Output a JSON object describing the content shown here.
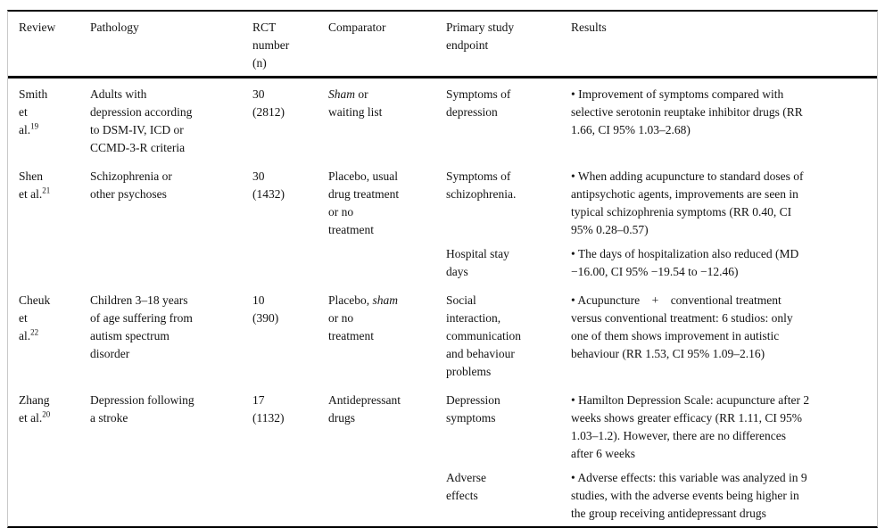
{
  "colors": {
    "background": "#ffffff",
    "text": "#131313",
    "rule": "#000000",
    "side_frame": "#c9c9c9"
  },
  "table": {
    "header": {
      "review": "Review",
      "pathology": "Pathology",
      "rct": "RCT\nnumber\n(n)",
      "comparator": "Comparator",
      "endpoint": "Primary study\nendpoint",
      "results": "Results"
    },
    "rows": [
      {
        "review_lines": [
          "Smith",
          "et",
          "al."
        ],
        "ref": "19",
        "pathology": "Adults with\ndepression according\nto DSM-IV, ICD or\nCCMD-3-R criteria",
        "rct": "30\n(2812)",
        "comparator": [
          {
            "text": "Sham",
            "italic": true
          },
          {
            "text": " or\nwaiting list",
            "italic": false
          }
        ],
        "entries": [
          {
            "endpoint": "Symptoms of\ndepression",
            "result": "• Improvement of symptoms compared with\nselective serotonin reuptake inhibitor drugs (RR\n1.66, CI 95% 1.03–2.68)"
          }
        ]
      },
      {
        "review_lines": [
          "Shen",
          "et al."
        ],
        "ref": "21",
        "pathology": "Schizophrenia or\nother psychoses",
        "rct": "30\n(1432)",
        "comparator": [
          {
            "text": "Placebo, usual\ndrug treatment\nor no\ntreatment",
            "italic": false
          }
        ],
        "entries": [
          {
            "endpoint": "Symptoms of\nschizophrenia.",
            "result": "• When adding acupuncture to standard doses of\nantipsychotic agents, improvements are seen in\ntypical schizophrenia symptoms (RR 0.40, CI\n95% 0.28–0.57)"
          },
          {
            "endpoint": "Hospital stay\ndays",
            "result": "• The days of hospitalization also reduced (MD\n−16.00, CI 95% −19.54 to −12.46)"
          }
        ]
      },
      {
        "review_lines": [
          "Cheuk",
          "et",
          "al."
        ],
        "ref": "22",
        "pathology": "Children 3–18 years\nof age suffering from\nautism spectrum\ndisorder",
        "rct": "10\n(390)",
        "comparator": [
          {
            "text": "Placebo, ",
            "italic": false
          },
          {
            "text": "sham",
            "italic": true
          },
          {
            "text": "\nor no\ntreatment",
            "italic": false
          }
        ],
        "entries": [
          {
            "endpoint": "Social\ninteraction,\ncommunication\nand behaviour\nproblems",
            "result": "• Acupuncture    +    conventional treatment\nversus conventional treatment: 6 studios: only\none of them shows improvement in autistic\nbehaviour (RR 1.53, CI 95% 1.09–2.16)"
          }
        ]
      },
      {
        "review_lines": [
          "Zhang",
          "et al."
        ],
        "ref": "20",
        "pathology": "Depression following\na stroke",
        "rct": "17\n(1132)",
        "comparator": [
          {
            "text": "Antidepressant\ndrugs",
            "italic": false
          }
        ],
        "entries": [
          {
            "endpoint": "Depression\nsymptoms",
            "result": "• Hamilton Depression Scale: acupuncture after 2\nweeks shows greater efficacy (RR 1.11, CI 95%\n1.03–1.2). However, there are no differences\nafter 6 weeks"
          },
          {
            "endpoint": "Adverse\neffects",
            "result": "• Adverse effects: this variable was analyzed in 9\nstudies, with the adverse events being higher in\nthe group receiving antidepressant drugs"
          }
        ]
      }
    ]
  }
}
